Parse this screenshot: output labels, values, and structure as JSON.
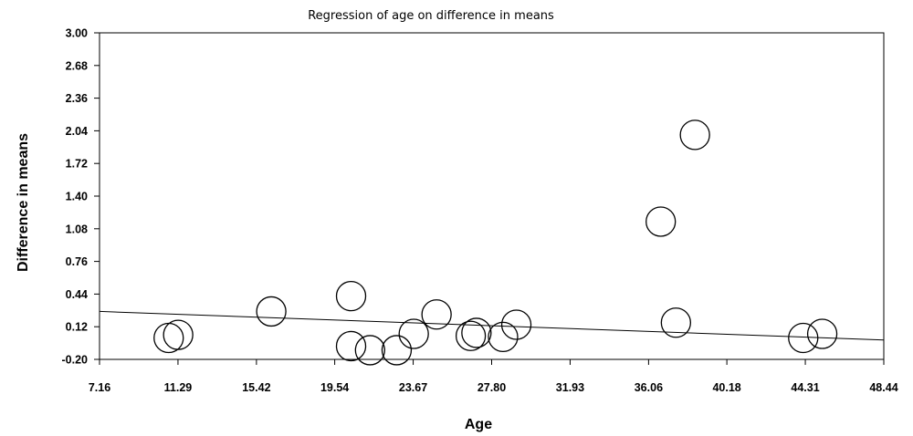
{
  "chart_data": {
    "type": "scatter",
    "title": "Regression of age on difference in means",
    "xlabel": "Age",
    "ylabel": "Difference in means",
    "xlim": [
      7.16,
      48.44
    ],
    "ylim": [
      -0.2,
      3.0
    ],
    "x_ticks": [
      "7.16",
      "11.29",
      "15.42",
      "19.54",
      "23.67",
      "27.80",
      "31.93",
      "36.06",
      "40.18",
      "44.31",
      "48.44"
    ],
    "y_ticks": [
      "3.00",
      "2.68",
      "2.36",
      "2.04",
      "1.72",
      "1.40",
      "1.08",
      "0.76",
      "0.44",
      "0.12",
      "-0.20"
    ],
    "grid": false,
    "legend": "none",
    "points": [
      {
        "x": 10.8,
        "y": 0.01
      },
      {
        "x": 11.3,
        "y": 0.04
      },
      {
        "x": 16.2,
        "y": 0.27
      },
      {
        "x": 20.4,
        "y": 0.42
      },
      {
        "x": 20.4,
        "y": -0.07
      },
      {
        "x": 21.4,
        "y": -0.11
      },
      {
        "x": 22.8,
        "y": -0.11
      },
      {
        "x": 23.7,
        "y": 0.05
      },
      {
        "x": 24.9,
        "y": 0.24
      },
      {
        "x": 26.7,
        "y": 0.03
      },
      {
        "x": 27.0,
        "y": 0.06
      },
      {
        "x": 28.4,
        "y": 0.02
      },
      {
        "x": 29.1,
        "y": 0.14
      },
      {
        "x": 36.7,
        "y": 1.15
      },
      {
        "x": 37.5,
        "y": 0.16
      },
      {
        "x": 38.5,
        "y": 2.0
      },
      {
        "x": 44.2,
        "y": 0.01
      },
      {
        "x": 45.2,
        "y": 0.05
      }
    ],
    "regression_line": {
      "x": [
        7.16,
        48.44
      ],
      "y": [
        0.27,
        -0.01
      ]
    }
  }
}
